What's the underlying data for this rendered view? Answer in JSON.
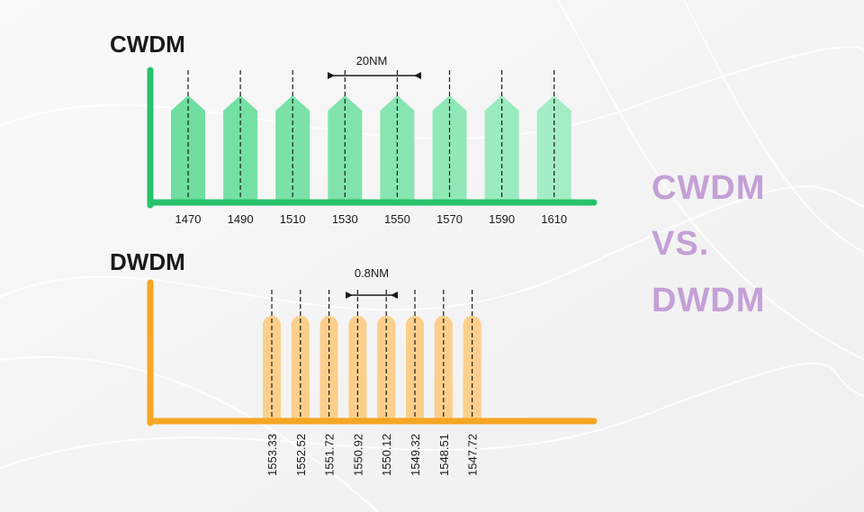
{
  "colors": {
    "cwdm_axis": "#27c26c",
    "cwdm_bars": [
      "#6fdea0",
      "#75e0a4",
      "#7ae2a8",
      "#80e3ab",
      "#86e5b0",
      "#90e8b7",
      "#9aebbe",
      "#a4edc4"
    ],
    "dwdm_axis": "#f5a623",
    "dwdm_bars": "#fbcf8b",
    "side_text": "#c4a0d6",
    "dashes": "#1a1a1a"
  },
  "cwdm": {
    "title": "CWDM",
    "channels": [
      "1470",
      "1490",
      "1510",
      "1530",
      "1550",
      "1570",
      "1590",
      "1610"
    ],
    "spacing_label": "20NM"
  },
  "dwdm": {
    "title": "DWDM",
    "channels": [
      "1553.33",
      "1552.52",
      "1551.72",
      "1550.92",
      "1550.12",
      "1549.32",
      "1548.51",
      "1547.72"
    ],
    "spacing_label": "0.8NM"
  },
  "side": {
    "line1": "CWDM",
    "line2": "VS.",
    "line3": "DWDM"
  }
}
